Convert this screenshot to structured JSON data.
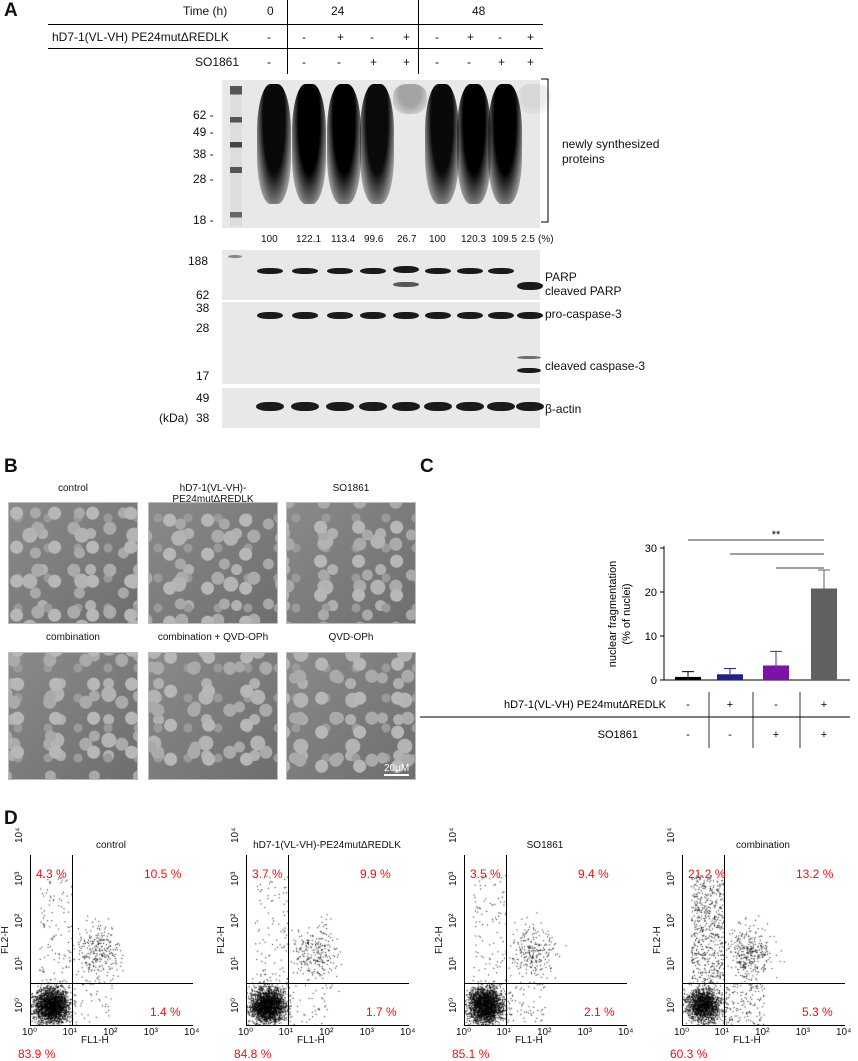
{
  "panels": {
    "a": "A",
    "b": "B",
    "c": "C",
    "d": "D"
  },
  "panelA": {
    "time_label": "Time (h)",
    "times": [
      "0",
      "24",
      "48"
    ],
    "row1_label": "hD7-1(VL-VH) PE24mutΔREDLK",
    "row1_values": [
      "-",
      "-",
      "+",
      "-",
      "+",
      "-",
      "+",
      "-",
      "+"
    ],
    "row2_label": "SO1861",
    "row2_values": [
      "-",
      "-",
      "-",
      "+",
      "+",
      "-",
      "-",
      "+",
      "+"
    ],
    "mw_top": [
      "62 -",
      "49 -",
      "38 -",
      "28 -",
      "18 -"
    ],
    "bracket_label_1": "newly synthesized",
    "bracket_label_2": "proteins",
    "percent_values": [
      "100",
      "122.1",
      "113.4",
      "99.6",
      "26.7",
      "100",
      "120.3",
      "109.5",
      "2.5"
    ],
    "percent_unit": "(%)",
    "mw_parp": [
      "188",
      "62"
    ],
    "parp_label": "PARP",
    "cleaved_parp_label": "cleaved PARP",
    "mw_casp": [
      "38",
      "28",
      "17"
    ],
    "procasp_label": "pro-caspase-3",
    "cleaved_casp_label": "cleaved caspase-3",
    "mw_actin": [
      "49",
      "38"
    ],
    "kda_label": "(kDa)",
    "actin_label": "β-actin"
  },
  "panelB": {
    "titles": [
      "control",
      "hD7-1(VL-VH)-PE24mutΔREDLK",
      "SO1861",
      "combination",
      "combination + QVD-OPh",
      "QVD-OPh"
    ],
    "scalebar": "20μM"
  },
  "panelC": {
    "chart_data": {
      "type": "bar",
      "ylabel": "nuclear fragmentation (% of nuclei)",
      "ylim": [
        0,
        30
      ],
      "yticks": [
        "0",
        "10",
        "20",
        "30"
      ],
      "values": [
        0.7,
        1.3,
        3.3,
        20.8
      ],
      "errors": [
        1.2,
        1.3,
        3.2,
        4.2
      ],
      "colors": [
        "#000000",
        "#1f1f8f",
        "#7a14a8",
        "#606060"
      ],
      "significance": "**",
      "row1_label": "hD7-1(VL-VH) PE24mutΔREDLK",
      "row1_values": [
        "-",
        "+",
        "-",
        "+"
      ],
      "row2_label": "SO1861",
      "row2_values": [
        "-",
        "-",
        "+",
        "+"
      ]
    }
  },
  "panelD": {
    "plots": [
      {
        "title": "control",
        "ul": "4.3 %",
        "ur": "10.5 %",
        "lr": "1.4 %",
        "ll": "83.9 %"
      },
      {
        "title": "hD7-1(VL-VH)-PE24mutΔREDLK",
        "ul": "3.7 %",
        "ur": "9.9 %",
        "lr": "1.7 %",
        "ll": "84.8 %"
      },
      {
        "title": "SO1861",
        "ul": "3.5 %",
        "ur": "9.4 %",
        "lr": "2.1 %",
        "ll": "85.1 %"
      },
      {
        "title": "combination",
        "ul": "21.2 %",
        "ur": "13.2 %",
        "lr": "5.3 %",
        "ll": "60.3 %"
      }
    ],
    "xlabel": "FL1-H",
    "ylabel": "FL2-H",
    "xticks": [
      "10⁰",
      "10¹",
      "10²",
      "10³",
      "10⁴"
    ],
    "yticks": [
      "10⁰",
      "10¹",
      "10²",
      "10³",
      "10⁴"
    ]
  }
}
